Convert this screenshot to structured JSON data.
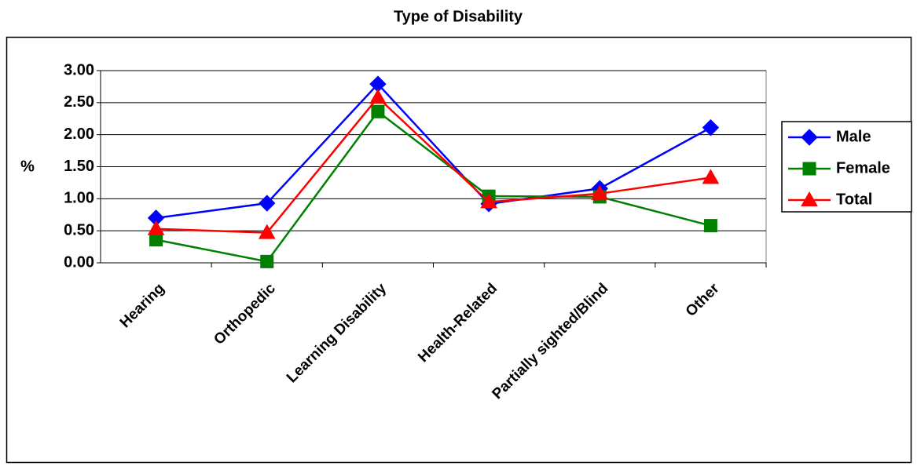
{
  "chart_data": {
    "type": "line",
    "title": "Type of Disability",
    "y_label": "%",
    "categories": [
      "Hearing",
      "Orthopedic",
      "Learning Disability",
      "Health-Related",
      "Partially sighted/Blind",
      "Other"
    ],
    "series": [
      {
        "name": "Male",
        "color": "#0000ff",
        "marker": "diamond",
        "values": [
          0.7,
          0.93,
          2.79,
          0.92,
          1.16,
          2.11
        ]
      },
      {
        "name": "Female",
        "color": "#008000",
        "marker": "square",
        "values": [
          0.36,
          0.02,
          2.36,
          1.04,
          1.03,
          0.58
        ]
      },
      {
        "name": "Total",
        "color": "#ff0000",
        "marker": "triangle",
        "values": [
          0.53,
          0.47,
          2.58,
          0.95,
          1.08,
          1.33
        ]
      }
    ],
    "ylim": [
      0,
      3
    ],
    "yticks": [
      {
        "value": 0,
        "label": "0.00"
      },
      {
        "value": 0.5,
        "label": "0.50"
      },
      {
        "value": 1,
        "label": "1.00"
      },
      {
        "value": 1.5,
        "label": "1.50"
      },
      {
        "value": 2,
        "label": "2.00"
      },
      {
        "value": 2.5,
        "label": "2.50"
      },
      {
        "value": 3,
        "label": "3.00"
      }
    ],
    "grid": true,
    "legend": "right"
  }
}
